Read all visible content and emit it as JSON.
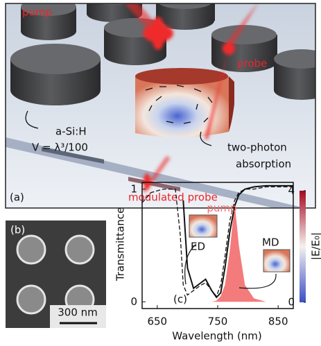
{
  "panel_a": {
    "pump": "pump",
    "probe": "probe",
    "material": "a-Si:H",
    "volume": "V = λ³/100",
    "two_photon": "two-photon",
    "absorption": "absorption",
    "panel_label": "(a)",
    "modulated_probe": "modulated probe"
  },
  "panel_b": {
    "panel_label": "(b)",
    "scale_bar": "300 nm"
  },
  "chart_data": {
    "type": "line",
    "panel_label": "(c)",
    "x_label": "Wavelength (nm)",
    "y_label": "Transmittance",
    "x": [
      625,
      640,
      660,
      680,
      688,
      693,
      700,
      710,
      720,
      730,
      740,
      748,
      755,
      762,
      770,
      778,
      785,
      795,
      810,
      830,
      850,
      875
    ],
    "series": [
      {
        "name": "pump",
        "style": "area",
        "color": "#f26d6d",
        "values": [
          0,
          0,
          0,
          0,
          0,
          0,
          0,
          0,
          0,
          0,
          0,
          0.01,
          0.05,
          0.15,
          0.45,
          0.88,
          0.5,
          0.15,
          0.03,
          0,
          0,
          0
        ]
      },
      {
        "style": "dashed",
        "color": "#111111",
        "values": [
          0.88,
          0.97,
          1.0,
          1.0,
          0.6,
          0.15,
          0.06,
          0.1,
          0.14,
          0.17,
          0.1,
          0.05,
          0.15,
          0.4,
          0.72,
          0.9,
          0.97,
          1.0,
          1.0,
          1.02,
          1.02,
          1.02
        ]
      },
      {
        "style": "solid",
        "color": "#111111",
        "values": [
          null,
          null,
          null,
          null,
          null,
          0.9,
          0.3,
          0.12,
          0.16,
          0.2,
          0.1,
          0.04,
          0.08,
          0.3,
          0.62,
          0.85,
          0.95,
          1.0,
          1.02,
          1.03,
          1.03,
          1.03
        ]
      }
    ],
    "xlim": [
      625,
      875
    ],
    "ylim": [
      -0.06,
      1.06
    ],
    "xticks": [
      650,
      750,
      850
    ],
    "yticks": [
      0,
      1
    ],
    "annotations": [
      "ED",
      "MD"
    ],
    "colorbar": {
      "label": "|E/E₀|",
      "lim": [
        0,
        4
      ],
      "ticks": [
        0,
        4
      ],
      "colors": [
        "#3a4fc4",
        "#f4f1ee",
        "#a4081f"
      ]
    }
  }
}
